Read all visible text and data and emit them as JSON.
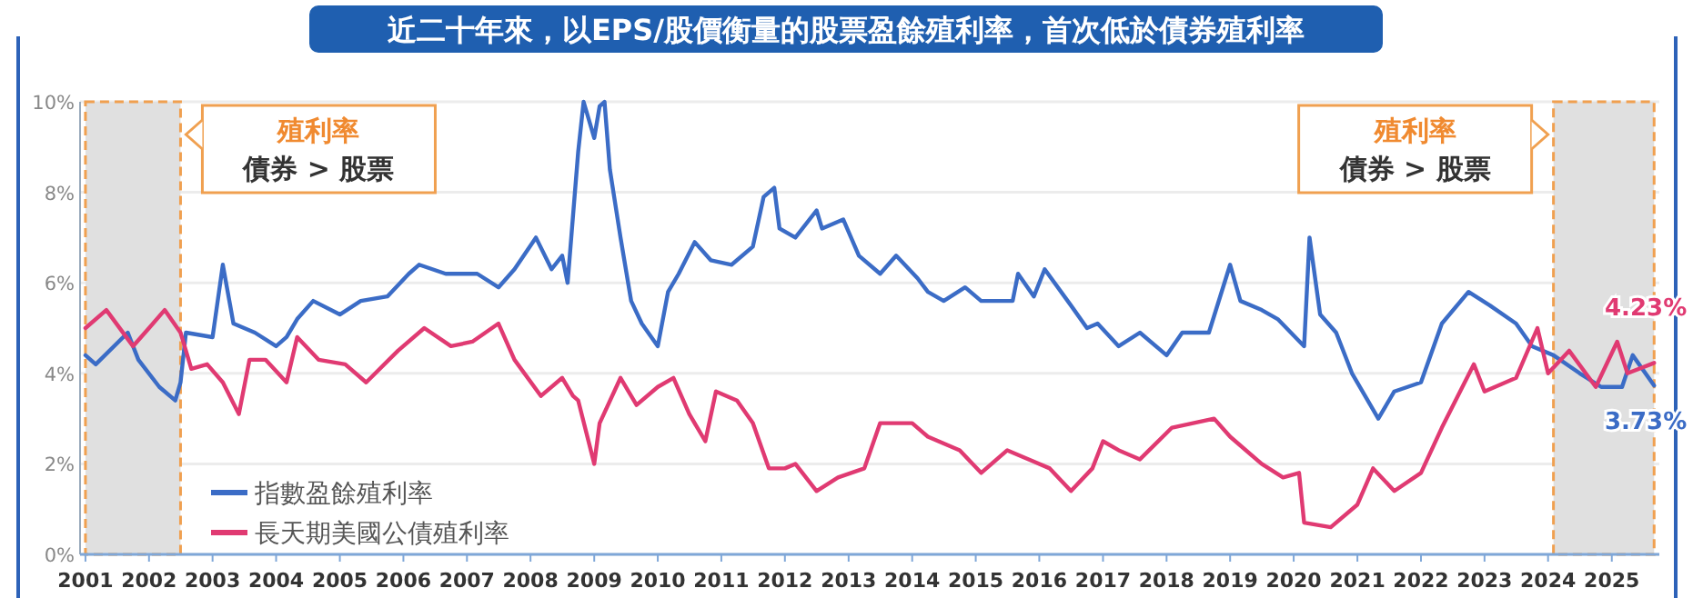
{
  "chart_data": {
    "type": "line",
    "title": "近二十年來，以EPS/股價衡量的股票盈餘殖利率，首次低於債券殖利率",
    "xlim": [
      "2000-12",
      "2025-10"
    ],
    "xticks": [
      "2001",
      "2002",
      "2003",
      "2004",
      "2005",
      "2006",
      "2007",
      "2008",
      "2009",
      "2010",
      "2011",
      "2012",
      "2013",
      "2014",
      "2015",
      "2016",
      "2017",
      "2018",
      "2019",
      "2020",
      "2021",
      "2022",
      "2023",
      "2024",
      "2025"
    ],
    "ylim": [
      0,
      10
    ],
    "yticks": [
      {
        "value": 0,
        "label": "0%"
      },
      {
        "value": 2,
        "label": "2%"
      },
      {
        "value": 4,
        "label": "4%"
      },
      {
        "value": 6,
        "label": "6%"
      },
      {
        "value": 8,
        "label": "8%"
      },
      {
        "value": 10,
        "label": "10%"
      }
    ],
    "grid": "y",
    "legend": "bottom left",
    "series": [
      {
        "name": "指數盈餘殖利率",
        "color": "#3b6cc6",
        "x": [
          "2001-01",
          "2001-03",
          "2001-09",
          "2001-11",
          "2002-03",
          "2002-06",
          "2002-07",
          "2002-08",
          "2003-01",
          "2003-03",
          "2003-05",
          "2003-09",
          "2004-01",
          "2004-03",
          "2004-05",
          "2004-08",
          "2005-01",
          "2005-05",
          "2005-10",
          "2006-02",
          "2006-04",
          "2006-09",
          "2007-03",
          "2007-07",
          "2007-10",
          "2008-02",
          "2008-05",
          "2008-07",
          "2008-08",
          "2008-10",
          "2008-11",
          "2009-01",
          "2009-02",
          "2009-03",
          "2009-04",
          "2009-06",
          "2009-08",
          "2009-10",
          "2010-01",
          "2010-03",
          "2010-05",
          "2010-08",
          "2010-11",
          "2011-03",
          "2011-07",
          "2011-09",
          "2011-11",
          "2011-12",
          "2012-03",
          "2012-07",
          "2012-08",
          "2012-12",
          "2013-03",
          "2013-07",
          "2013-10",
          "2014-02",
          "2014-04",
          "2014-07",
          "2014-11",
          "2015-02",
          "2015-08",
          "2015-09",
          "2015-12",
          "2016-02",
          "2016-07",
          "2016-10",
          "2016-12",
          "2017-04",
          "2017-08",
          "2018-01",
          "2018-04",
          "2018-09",
          "2019-01",
          "2019-03",
          "2019-07",
          "2019-10",
          "2020-03",
          "2020-04",
          "2020-06",
          "2020-09",
          "2020-12",
          "2021-05",
          "2021-08",
          "2022-01",
          "2022-05",
          "2022-10",
          "2023-02",
          "2023-07",
          "2023-10",
          "2024-02",
          "2024-07",
          "2024-11",
          "2025-03",
          "2025-05",
          "2025-09"
        ],
        "values": [
          4.4,
          4.2,
          4.9,
          4.3,
          3.7,
          3.4,
          3.8,
          4.9,
          4.8,
          6.4,
          5.1,
          4.9,
          4.6,
          4.8,
          5.2,
          5.6,
          5.3,
          5.6,
          5.7,
          6.2,
          6.4,
          6.2,
          6.2,
          5.9,
          6.3,
          7.0,
          6.3,
          6.6,
          6.0,
          8.9,
          10,
          9.2,
          9.9,
          10,
          8.5,
          7.0,
          5.6,
          5.1,
          4.6,
          5.8,
          6.2,
          6.9,
          6.5,
          6.4,
          6.8,
          7.9,
          8.1,
          7.2,
          7.0,
          7.6,
          7.2,
          7.4,
          6.6,
          6.2,
          6.6,
          6.1,
          5.8,
          5.6,
          5.9,
          5.6,
          5.6,
          6.2,
          5.7,
          6.3,
          5.5,
          5.0,
          5.1,
          4.6,
          4.9,
          4.4,
          4.9,
          4.9,
          6.4,
          5.6,
          5.4,
          5.2,
          4.6,
          7.0,
          5.3,
          4.9,
          4.0,
          3.0,
          3.6,
          3.8,
          5.1,
          5.8,
          5.5,
          5.1,
          4.6,
          4.4,
          4.0,
          3.7,
          3.7,
          4.4,
          3.73
        ]
      },
      {
        "name": "長天期美國公債殖利率",
        "color": "#e03a72",
        "x": [
          "2001-01",
          "2001-05",
          "2001-10",
          "2002-01",
          "2002-04",
          "2002-07",
          "2002-09",
          "2002-12",
          "2003-03",
          "2003-06",
          "2003-08",
          "2003-11",
          "2004-03",
          "2004-05",
          "2004-09",
          "2005-02",
          "2005-06",
          "2005-12",
          "2006-05",
          "2006-10",
          "2007-02",
          "2007-07",
          "2007-10",
          "2008-03",
          "2008-07",
          "2008-09",
          "2008-10",
          "2009-01",
          "2009-02",
          "2009-06",
          "2009-09",
          "2010-01",
          "2010-04",
          "2010-07",
          "2010-10",
          "2010-12",
          "2011-04",
          "2011-07",
          "2011-10",
          "2012-01",
          "2012-03",
          "2012-07",
          "2012-11",
          "2013-04",
          "2013-07",
          "2014-01",
          "2014-04",
          "2014-10",
          "2015-02",
          "2015-07",
          "2015-11",
          "2016-03",
          "2016-07",
          "2016-11",
          "2017-01",
          "2017-04",
          "2017-08",
          "2018-02",
          "2018-10",
          "2019-01",
          "2019-07",
          "2019-11",
          "2020-02",
          "2020-03",
          "2020-08",
          "2021-01",
          "2021-04",
          "2021-08",
          "2022-01",
          "2022-05",
          "2022-11",
          "2023-01",
          "2023-07",
          "2023-11",
          "2024-01",
          "2024-05",
          "2024-10",
          "2025-02",
          "2025-04",
          "2025-09"
        ],
        "values": [
          5.0,
          5.4,
          4.6,
          5.0,
          5.4,
          4.9,
          4.1,
          4.2,
          3.8,
          3.1,
          4.3,
          4.3,
          3.8,
          4.8,
          4.3,
          4.2,
          3.8,
          4.5,
          5.0,
          4.6,
          4.7,
          5.1,
          4.3,
          3.5,
          3.9,
          3.5,
          3.4,
          2.0,
          2.9,
          3.9,
          3.3,
          3.7,
          3.9,
          3.1,
          2.5,
          3.6,
          3.4,
          2.9,
          1.9,
          1.9,
          2.0,
          1.4,
          1.7,
          1.9,
          2.9,
          2.9,
          2.6,
          2.3,
          1.8,
          2.3,
          2.1,
          1.9,
          1.4,
          1.9,
          2.5,
          2.3,
          2.1,
          2.8,
          3.0,
          2.6,
          2.0,
          1.7,
          1.8,
          0.7,
          0.6,
          1.1,
          1.9,
          1.4,
          1.8,
          2.8,
          4.2,
          3.6,
          3.9,
          5.0,
          4.0,
          4.5,
          3.7,
          4.7,
          4.0,
          4.23
        ]
      }
    ],
    "bands": [
      {
        "axis": "x",
        "from": "2001-01",
        "to": "2002-07",
        "label": "債券 > 股票",
        "color": "#e0e0e0"
      },
      {
        "axis": "x",
        "from": "2024-02",
        "to": "2025-09",
        "label": "債券 > 股票",
        "color": "#e0e0e0"
      }
    ],
    "annotations": [
      "殖利率",
      "殖利率",
      {
        "text": "4.23%",
        "x": "2025-09",
        "y": 4.23
      },
      {
        "text": "3.73%",
        "x": "2025-09",
        "y": 3.73
      }
    ]
  }
}
